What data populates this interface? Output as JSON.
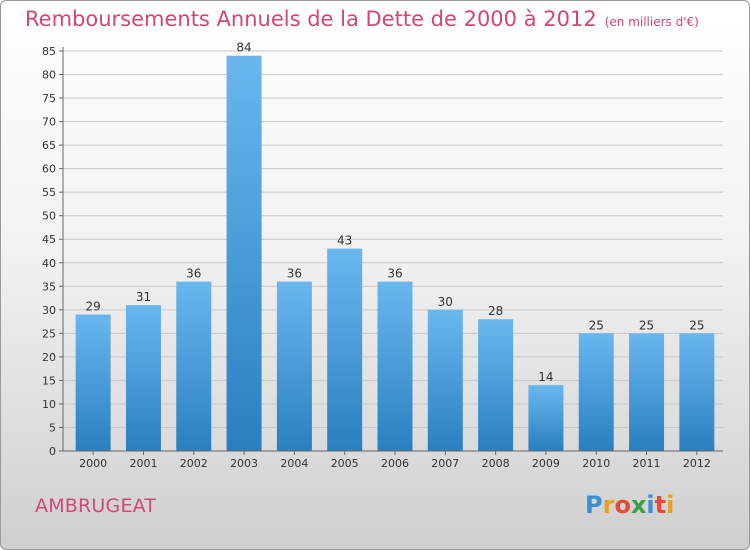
{
  "title": "Remboursements Annuels de la Dette de 2000 à 2012",
  "unit_note": "(en milliers d'€)",
  "commune": "AMBRUGEAT",
  "logo": {
    "letters": [
      "P",
      "r",
      "o",
      "x",
      "i",
      "t",
      "i"
    ],
    "colors": [
      "#3a8fd8",
      "#e8a020",
      "#e84a3a",
      "#3aa040",
      "#3a8fd8",
      "#e84a3a",
      "#e8a020"
    ]
  },
  "colors": {
    "bar_light": "#6ab7f0",
    "bar_dark": "#2a7fbf",
    "grid": "#c8c8c8",
    "axis_text": "#333333",
    "accent": "#d2467a"
  },
  "chart_data": {
    "type": "bar",
    "categories": [
      "2000",
      "2001",
      "2002",
      "2003",
      "2004",
      "2005",
      "2006",
      "2007",
      "2008",
      "2009",
      "2010",
      "2011",
      "2012"
    ],
    "values": [
      29,
      31,
      36,
      84,
      36,
      43,
      36,
      30,
      28,
      14,
      25,
      25,
      25
    ],
    "data_labels": [
      "29",
      "31",
      "36",
      "84",
      "36",
      "43",
      "36",
      "30",
      "28",
      "14",
      "25",
      "25",
      "25"
    ],
    "ylim": [
      0,
      85
    ],
    "yticks": [
      "0",
      "5",
      "10",
      "15",
      "20",
      "25",
      "30",
      "35",
      "40",
      "45",
      "50",
      "55",
      "60",
      "65",
      "70",
      "75",
      "80",
      "85"
    ],
    "grid": true
  }
}
